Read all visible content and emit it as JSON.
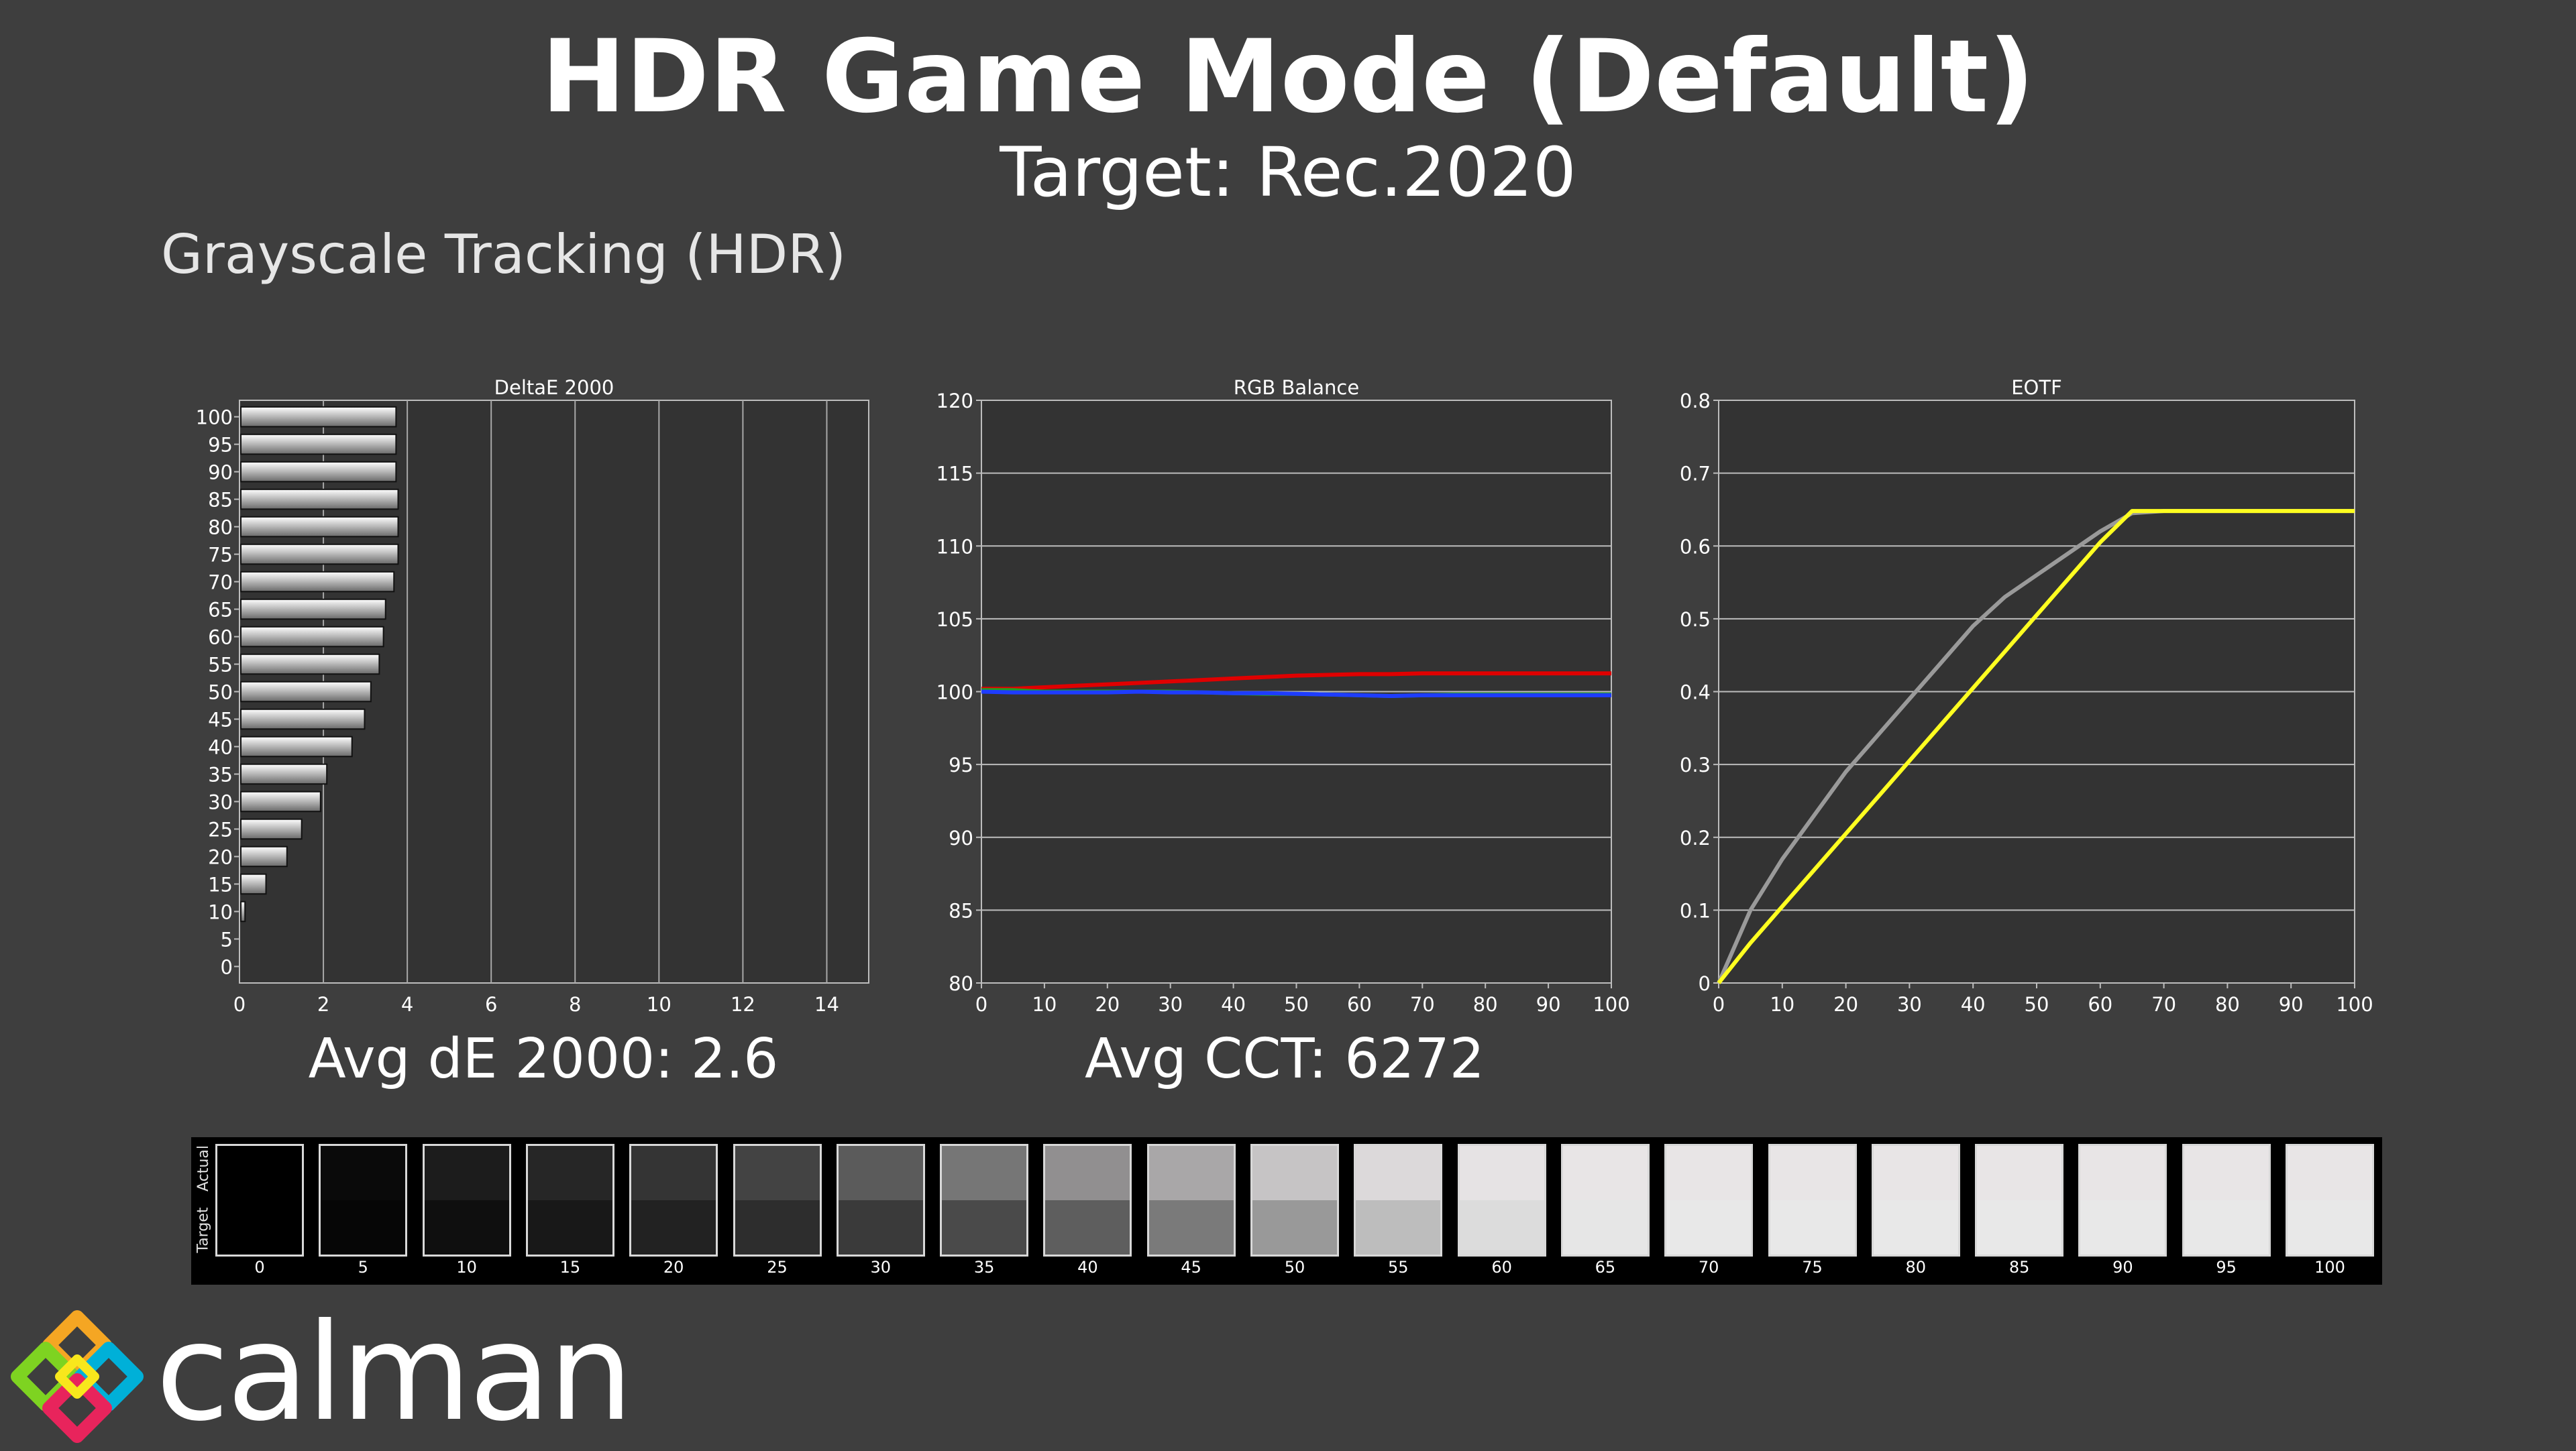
{
  "header": {
    "title": "HDR Game Mode (Default)",
    "subtitle": "Target: Rec.2020",
    "section": "Grayscale Tracking (HDR)"
  },
  "chart_data": [
    {
      "type": "bar",
      "orientation": "horizontal",
      "title": "DeltaE 2000",
      "categories": [
        "100",
        "95",
        "90",
        "85",
        "80",
        "75",
        "70",
        "65",
        "60",
        "55",
        "50",
        "45",
        "40",
        "35",
        "30",
        "25",
        "20",
        "15",
        "10",
        "5",
        "0"
      ],
      "values": [
        3.7,
        3.7,
        3.7,
        3.75,
        3.75,
        3.75,
        3.65,
        3.45,
        3.4,
        3.3,
        3.1,
        2.95,
        2.65,
        2.05,
        1.9,
        1.45,
        1.1,
        0.6,
        0.1,
        0.0,
        0.0
      ],
      "xlim": [
        0,
        15
      ],
      "xticks": [
        0,
        2,
        4,
        6,
        8,
        10,
        12,
        14
      ],
      "grid": true
    },
    {
      "type": "line",
      "title": "RGB Balance",
      "x": [
        0,
        5,
        10,
        15,
        20,
        25,
        30,
        35,
        40,
        45,
        50,
        55,
        60,
        65,
        70,
        75,
        80,
        85,
        90,
        95,
        100
      ],
      "series": [
        {
          "color": "#e00000",
          "values": [
            100.2,
            100.2,
            100.3,
            100.4,
            100.5,
            100.6,
            100.7,
            100.8,
            100.9,
            101.0,
            101.1,
            101.15,
            101.2,
            101.2,
            101.25,
            101.25,
            101.25,
            101.25,
            101.25,
            101.25,
            101.25
          ]
        },
        {
          "color": "#20a020",
          "values": [
            100.1,
            100.1,
            100.0,
            100.0,
            100.0,
            100.0,
            100.0,
            99.95,
            99.9,
            99.85,
            99.85,
            99.8,
            99.75,
            99.7,
            99.75,
            99.8,
            99.8,
            99.8,
            99.8,
            99.8,
            99.8
          ]
        },
        {
          "color": "#1e3cff",
          "values": [
            100.0,
            99.95,
            99.95,
            99.95,
            99.95,
            100.0,
            99.95,
            99.95,
            99.9,
            99.9,
            99.85,
            99.8,
            99.75,
            99.7,
            99.75,
            99.75,
            99.75,
            99.75,
            99.75,
            99.75,
            99.75
          ]
        }
      ],
      "ylim": [
        80,
        120
      ],
      "yticks": [
        80,
        85,
        90,
        95,
        100,
        105,
        110,
        115,
        120
      ],
      "xticks": [
        0,
        10,
        20,
        30,
        40,
        50,
        60,
        70,
        80,
        90,
        100
      ],
      "grid": true
    },
    {
      "type": "line",
      "title": "EOTF",
      "x": [
        0,
        5,
        10,
        15,
        20,
        25,
        30,
        35,
        40,
        45,
        50,
        55,
        60,
        65,
        70,
        75,
        80,
        85,
        90,
        95,
        100
      ],
      "series": [
        {
          "color": "#9a9a9a",
          "values": [
            0.0,
            0.1,
            0.17,
            0.23,
            0.29,
            0.34,
            0.39,
            0.44,
            0.49,
            0.53,
            0.56,
            0.59,
            0.62,
            0.645,
            0.648,
            0.648,
            0.648,
            0.648,
            0.648,
            0.648,
            0.648
          ]
        },
        {
          "color": "#ffff20",
          "values": [
            0.0,
            0.055,
            0.105,
            0.155,
            0.205,
            0.255,
            0.305,
            0.355,
            0.405,
            0.455,
            0.505,
            0.555,
            0.605,
            0.648,
            0.648,
            0.648,
            0.648,
            0.648,
            0.648,
            0.648,
            0.648
          ]
        }
      ],
      "ylim": [
        0,
        0.8
      ],
      "yticks": [
        0,
        0.1,
        0.2,
        0.3,
        0.4,
        0.5,
        0.6,
        0.7,
        0.8
      ],
      "ytick_labels": [
        "0",
        "0.1",
        "0.2",
        "0.3",
        "0.4",
        "0.5",
        "0.6",
        "0.7",
        "0.8"
      ],
      "xticks": [
        0,
        10,
        20,
        30,
        40,
        50,
        60,
        70,
        80,
        90,
        100
      ],
      "grid": true
    }
  ],
  "summary": {
    "avg_de": "Avg dE 2000: 2.6",
    "avg_cct": "Avg CCT: 6272"
  },
  "swatches": {
    "actual_label": "Actual",
    "target_label": "Target",
    "items": [
      {
        "label": "0",
        "actual": "#000000",
        "target": "#000000"
      },
      {
        "label": "5",
        "actual": "#0a0a0a",
        "target": "#060606"
      },
      {
        "label": "10",
        "actual": "#1c1c1c",
        "target": "#0f0f0f"
      },
      {
        "label": "15",
        "actual": "#262626",
        "target": "#181818"
      },
      {
        "label": "20",
        "actual": "#343434",
        "target": "#222222"
      },
      {
        "label": "25",
        "actual": "#434343",
        "target": "#2d2d2d"
      },
      {
        "label": "30",
        "actual": "#5b5b5b",
        "target": "#3a3a3a"
      },
      {
        "label": "35",
        "actual": "#767676",
        "target": "#4a4a4a"
      },
      {
        "label": "40",
        "actual": "#918f90",
        "target": "#5e5e5e"
      },
      {
        "label": "45",
        "actual": "#a9a7a8",
        "target": "#7a7a7a"
      },
      {
        "label": "50",
        "actual": "#c6c4c5",
        "target": "#999999"
      },
      {
        "label": "55",
        "actual": "#dcd9da",
        "target": "#bdbdbd"
      },
      {
        "label": "60",
        "actual": "#e6e3e4",
        "target": "#dcdcdc"
      },
      {
        "label": "65",
        "actual": "#e8e5e6",
        "target": "#e6e6e6"
      },
      {
        "label": "70",
        "actual": "#e8e5e6",
        "target": "#e8e8e8"
      },
      {
        "label": "75",
        "actual": "#e8e5e6",
        "target": "#e8e8e8"
      },
      {
        "label": "80",
        "actual": "#e8e5e6",
        "target": "#e8e8e8"
      },
      {
        "label": "85",
        "actual": "#e8e5e6",
        "target": "#e8e8e8"
      },
      {
        "label": "90",
        "actual": "#e8e5e6",
        "target": "#e8e8e8"
      },
      {
        "label": "95",
        "actual": "#e8e5e6",
        "target": "#e8e8e8"
      },
      {
        "label": "100",
        "actual": "#e8e5e6",
        "target": "#e8e8e8"
      }
    ]
  },
  "logo": {
    "text": "calman",
    "colors": [
      "#f5a623",
      "#7ed321",
      "#00b0d8",
      "#e8245c",
      "#f8e71c"
    ]
  }
}
